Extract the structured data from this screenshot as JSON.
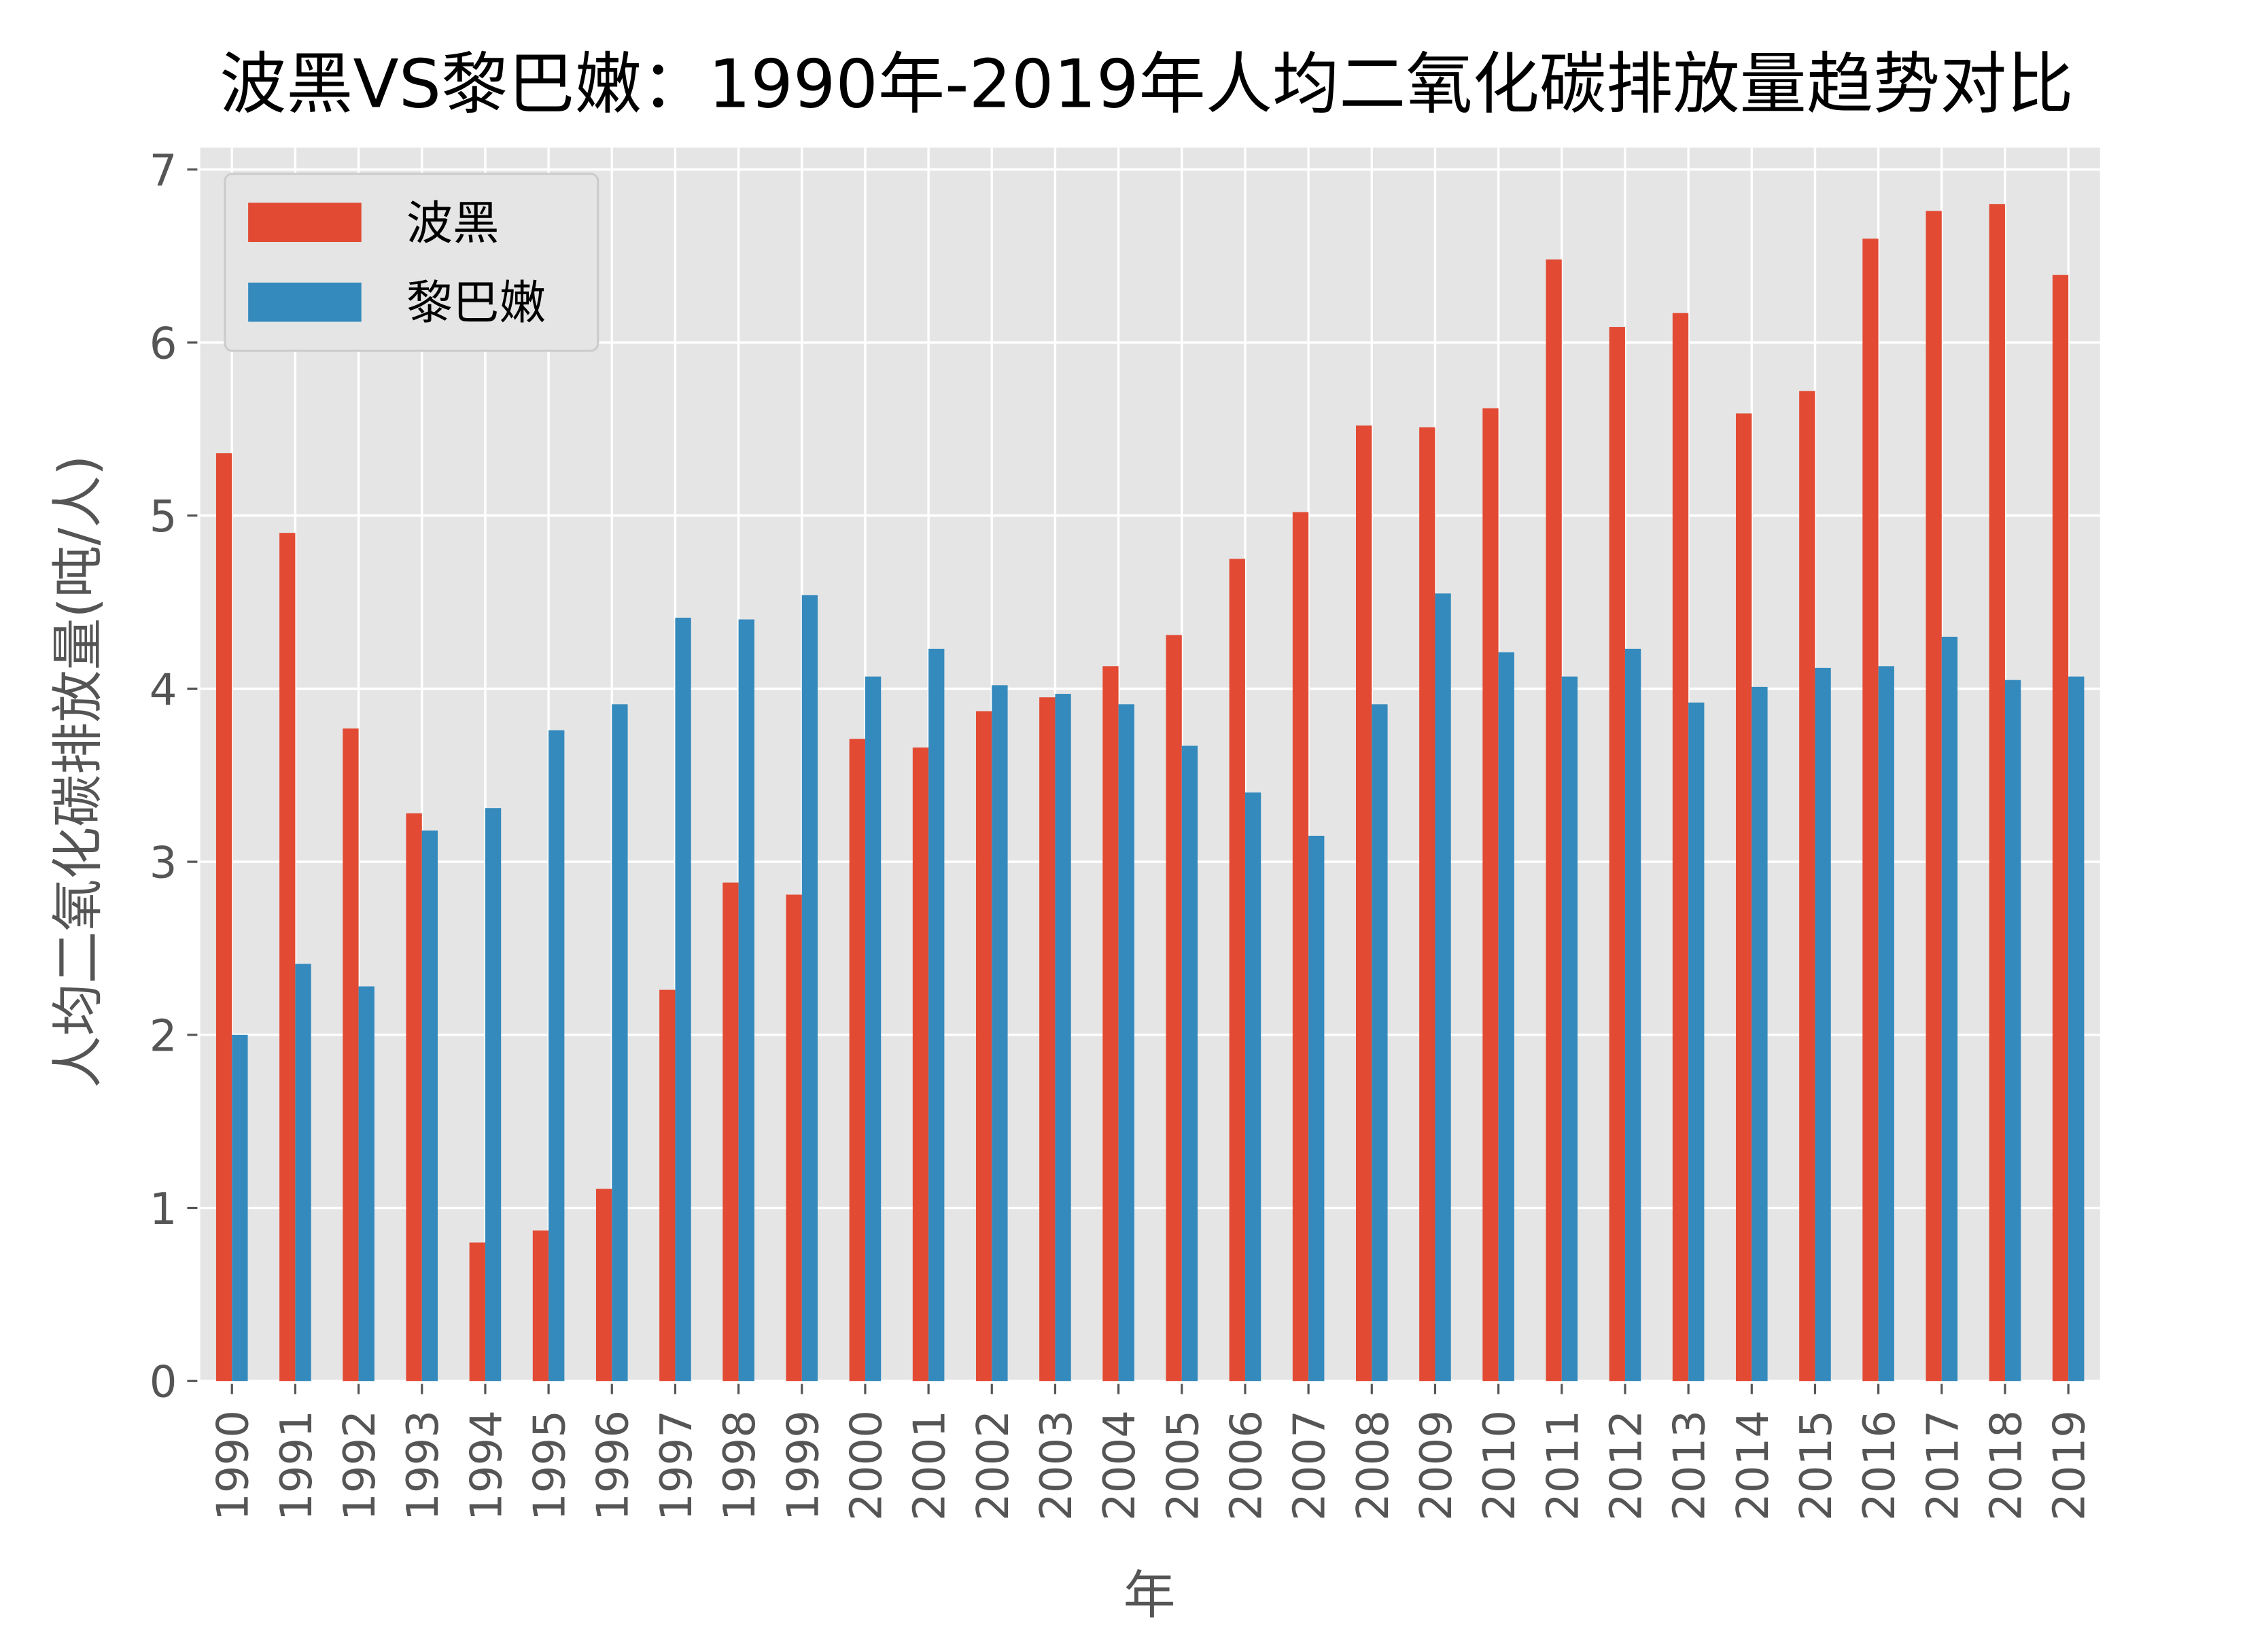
{
  "chart_data": {
    "type": "bar",
    "title": "波黑VS黎巴嫩：1990年-2019年人均二氧化碳排放量趋势对比",
    "xlabel": "年",
    "ylabel": "人均二氧化碳排放量(吨/人)",
    "ylim": [
      0,
      7
    ],
    "yticks": [
      "0",
      "1",
      "2",
      "3",
      "4",
      "5",
      "6",
      "7"
    ],
    "grid": true,
    "legend_position": "top-left",
    "categories": [
      "1990",
      "1991",
      "1992",
      "1993",
      "1994",
      "1995",
      "1996",
      "1997",
      "1998",
      "1999",
      "2000",
      "2001",
      "2002",
      "2003",
      "2004",
      "2005",
      "2006",
      "2007",
      "2008",
      "2009",
      "2010",
      "2011",
      "2012",
      "2013",
      "2014",
      "2015",
      "2016",
      "2017",
      "2018",
      "2019"
    ],
    "series": [
      {
        "name": "波黑",
        "color": "#E24A33",
        "values": [
          5.36,
          4.9,
          3.77,
          3.28,
          0.8,
          0.87,
          1.11,
          2.26,
          2.88,
          2.81,
          3.71,
          3.66,
          3.87,
          3.95,
          4.13,
          4.31,
          4.75,
          5.02,
          5.52,
          5.51,
          5.62,
          6.48,
          6.09,
          6.17,
          5.59,
          5.72,
          6.6,
          6.76,
          6.8,
          6.39
        ]
      },
      {
        "name": "黎巴嫩",
        "color": "#348ABD",
        "values": [
          2.0,
          2.41,
          2.28,
          3.18,
          3.31,
          3.76,
          3.91,
          4.41,
          4.4,
          4.54,
          4.07,
          4.23,
          4.02,
          3.97,
          3.91,
          3.67,
          3.4,
          3.15,
          3.91,
          4.55,
          4.21,
          4.07,
          4.23,
          3.92,
          4.01,
          4.12,
          4.13,
          4.3,
          4.05,
          4.07
        ]
      }
    ]
  }
}
